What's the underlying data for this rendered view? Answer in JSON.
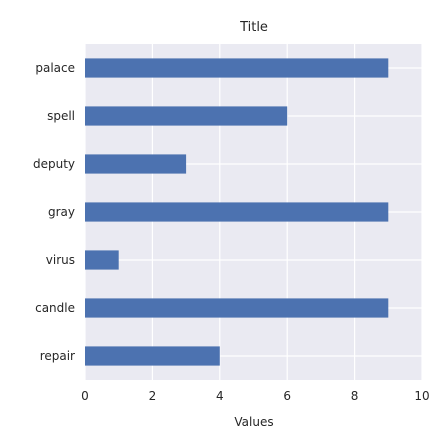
{
  "chart_data": {
    "type": "bar",
    "orientation": "horizontal",
    "title": "Title",
    "xlabel": "Values",
    "ylabel": "",
    "categories": [
      "repair",
      "candle",
      "virus",
      "gray",
      "deputy",
      "spell",
      "palace"
    ],
    "values": [
      4,
      9,
      1,
      9,
      3,
      6,
      9
    ],
    "xlim": [
      0,
      10
    ],
    "xticks": [
      0,
      2,
      4,
      6,
      8,
      10
    ],
    "grid": true,
    "legend": "none",
    "colors": {
      "bar": "#4c72b0",
      "plot_background": "#eaeaf2",
      "grid": "#ffffff",
      "text": "#262626"
    }
  }
}
